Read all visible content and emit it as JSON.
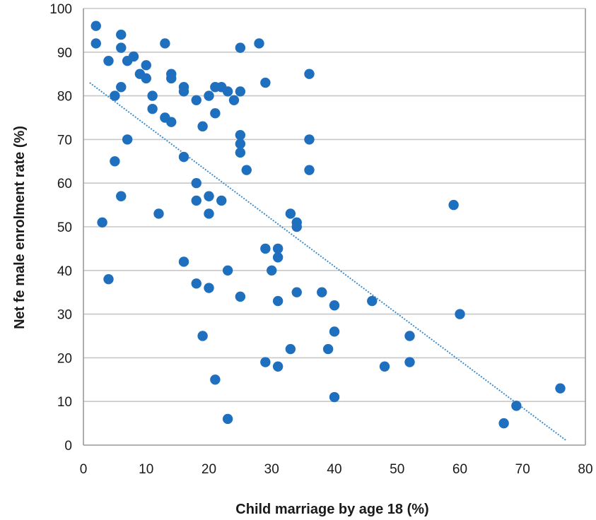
{
  "chart_data": {
    "type": "scatter",
    "title": "",
    "xlabel": "Child marriage by age 18 (%)",
    "ylabel": "Net fe male enrolment rate (%)",
    "xlim": [
      0,
      80
    ],
    "ylim": [
      0,
      100
    ],
    "x_ticks": [
      "0",
      "10",
      "20",
      "30",
      "40",
      "50",
      "60",
      "70",
      "80"
    ],
    "y_ticks": [
      "0",
      "10",
      "20",
      "30",
      "40",
      "50",
      "60",
      "70",
      "80",
      "90",
      "100"
    ],
    "grid": "horizontal",
    "marker_color": "#1f6fbf",
    "trendline": {
      "style": "dotted",
      "color": "#3b8fd0",
      "x": [
        1,
        77
      ],
      "y": [
        83,
        1
      ]
    },
    "points": [
      {
        "x": 2,
        "y": 96
      },
      {
        "x": 2,
        "y": 92
      },
      {
        "x": 4,
        "y": 88
      },
      {
        "x": 6,
        "y": 94
      },
      {
        "x": 6,
        "y": 91
      },
      {
        "x": 7,
        "y": 88
      },
      {
        "x": 8,
        "y": 89
      },
      {
        "x": 9,
        "y": 85
      },
      {
        "x": 10,
        "y": 84
      },
      {
        "x": 10,
        "y": 87
      },
      {
        "x": 13,
        "y": 92
      },
      {
        "x": 14,
        "y": 85
      },
      {
        "x": 14,
        "y": 84
      },
      {
        "x": 5,
        "y": 80
      },
      {
        "x": 6,
        "y": 82
      },
      {
        "x": 11,
        "y": 80
      },
      {
        "x": 11,
        "y": 77
      },
      {
        "x": 13,
        "y": 75
      },
      {
        "x": 14,
        "y": 74
      },
      {
        "x": 16,
        "y": 82
      },
      {
        "x": 16,
        "y": 81
      },
      {
        "x": 18,
        "y": 79
      },
      {
        "x": 20,
        "y": 80
      },
      {
        "x": 21,
        "y": 82
      },
      {
        "x": 22,
        "y": 82
      },
      {
        "x": 23,
        "y": 81
      },
      {
        "x": 24,
        "y": 79
      },
      {
        "x": 25,
        "y": 81
      },
      {
        "x": 21,
        "y": 76
      },
      {
        "x": 19,
        "y": 73
      },
      {
        "x": 25,
        "y": 91
      },
      {
        "x": 28,
        "y": 92
      },
      {
        "x": 29,
        "y": 83
      },
      {
        "x": 36,
        "y": 85
      },
      {
        "x": 25,
        "y": 71
      },
      {
        "x": 25,
        "y": 69
      },
      {
        "x": 25,
        "y": 67
      },
      {
        "x": 26,
        "y": 63
      },
      {
        "x": 36,
        "y": 70
      },
      {
        "x": 36,
        "y": 63
      },
      {
        "x": 7,
        "y": 70
      },
      {
        "x": 5,
        "y": 65
      },
      {
        "x": 16,
        "y": 66
      },
      {
        "x": 18,
        "y": 60
      },
      {
        "x": 6,
        "y": 57
      },
      {
        "x": 3,
        "y": 51
      },
      {
        "x": 12,
        "y": 53
      },
      {
        "x": 18,
        "y": 56
      },
      {
        "x": 20,
        "y": 57
      },
      {
        "x": 20,
        "y": 53
      },
      {
        "x": 22,
        "y": 56
      },
      {
        "x": 33,
        "y": 53
      },
      {
        "x": 34,
        "y": 51
      },
      {
        "x": 34,
        "y": 50
      },
      {
        "x": 59,
        "y": 55
      },
      {
        "x": 29,
        "y": 45
      },
      {
        "x": 31,
        "y": 45
      },
      {
        "x": 31,
        "y": 43
      },
      {
        "x": 16,
        "y": 42
      },
      {
        "x": 30,
        "y": 40
      },
      {
        "x": 23,
        "y": 40
      },
      {
        "x": 4,
        "y": 38
      },
      {
        "x": 18,
        "y": 37
      },
      {
        "x": 20,
        "y": 36
      },
      {
        "x": 25,
        "y": 34
      },
      {
        "x": 31,
        "y": 33
      },
      {
        "x": 34,
        "y": 35
      },
      {
        "x": 38,
        "y": 35
      },
      {
        "x": 40,
        "y": 32
      },
      {
        "x": 46,
        "y": 33
      },
      {
        "x": 60,
        "y": 30
      },
      {
        "x": 19,
        "y": 25
      },
      {
        "x": 40,
        "y": 26
      },
      {
        "x": 52,
        "y": 25
      },
      {
        "x": 33,
        "y": 22
      },
      {
        "x": 39,
        "y": 22
      },
      {
        "x": 29,
        "y": 19
      },
      {
        "x": 31,
        "y": 18
      },
      {
        "x": 48,
        "y": 18
      },
      {
        "x": 52,
        "y": 19
      },
      {
        "x": 21,
        "y": 15
      },
      {
        "x": 40,
        "y": 11
      },
      {
        "x": 76,
        "y": 13
      },
      {
        "x": 69,
        "y": 9
      },
      {
        "x": 23,
        "y": 6
      },
      {
        "x": 67,
        "y": 5
      }
    ]
  }
}
